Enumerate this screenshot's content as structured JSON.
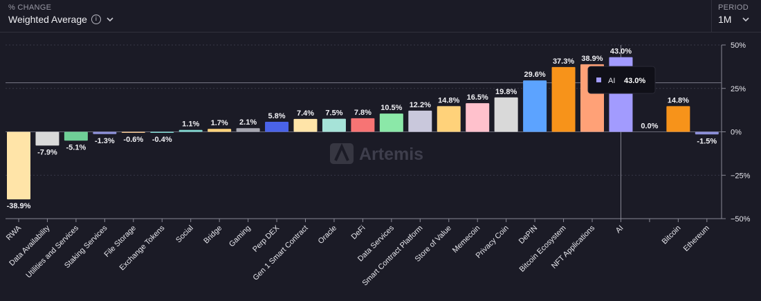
{
  "header": {
    "metric_label": "% CHANGE",
    "metric_value": "Weighted Average",
    "info_icon": "info-icon",
    "dropdown_icon": "chevron-down-icon",
    "period_label": "PERIOD",
    "period_value": "1M"
  },
  "watermark": "Artemis",
  "tooltip": {
    "category": "AI",
    "value": "43.0%",
    "color": "#a29bfe"
  },
  "chart_data": {
    "type": "bar",
    "title": "",
    "xlabel": "",
    "ylabel": "",
    "ylim": [
      -50,
      50
    ],
    "y_ticks": [
      50,
      25,
      0,
      -25,
      -50
    ],
    "y_tick_labels": [
      "50%",
      "25%",
      "0%",
      "−25%",
      "−50%"
    ],
    "grid": true,
    "categories": [
      "RWA",
      "Data Availability",
      "Utilities and Services",
      "Staking Services",
      "File Storage",
      "Exchange Tokens",
      "Social",
      "Bridge",
      "Gaming",
      "Perp DEX",
      "Gen 1 Smart Contract",
      "Oracle",
      "DeFi",
      "Data Services",
      "Smart Contract Platform",
      "Store of Value",
      "Memecoin",
      "Privacy Coin",
      "DePIN",
      "Bitcoin Ecosystem",
      "NFT Applications",
      "AI",
      "",
      "Bitcoin",
      "Ethereum"
    ],
    "values": [
      -38.9,
      -7.9,
      -5.1,
      -1.3,
      -0.6,
      -0.4,
      1.1,
      1.7,
      2.1,
      5.8,
      7.4,
      7.5,
      7.8,
      10.5,
      12.2,
      14.8,
      16.5,
      19.8,
      29.6,
      37.3,
      38.9,
      43.0,
      0.0,
      14.8,
      -1.5
    ],
    "value_labels": [
      "-38.9%",
      "-7.9%",
      "-5.1%",
      "-1.3%",
      "-0.6%",
      "-0.4%",
      "1.1%",
      "1.7%",
      "2.1%",
      "5.8%",
      "7.4%",
      "7.5%",
      "7.8%",
      "10.5%",
      "12.2%",
      "14.8%",
      "16.5%",
      "19.8%",
      "29.6%",
      "37.3%",
      "38.9%",
      "43.0%",
      "0.0%",
      "14.8%",
      "-1.5%"
    ],
    "colors": [
      "#ffe4a8",
      "#d9d9d9",
      "#6fcf97",
      "#8c8fd8",
      "#f2c48f",
      "#7fd6cf",
      "#7fd6cf",
      "#ffd27a",
      "#a6a6b0",
      "#4a63e8",
      "#ffe4a8",
      "#a6e3d8",
      "#f77474",
      "#8be8a8",
      "#c9c8dc",
      "#ffd27a",
      "#ffc1cc",
      "#d9d9d9",
      "#5ca3ff",
      "#f7931a",
      "#ffa177",
      "#a29bfe",
      "#7fd6cf",
      "#f7931a",
      "#8c8fd8"
    ]
  }
}
